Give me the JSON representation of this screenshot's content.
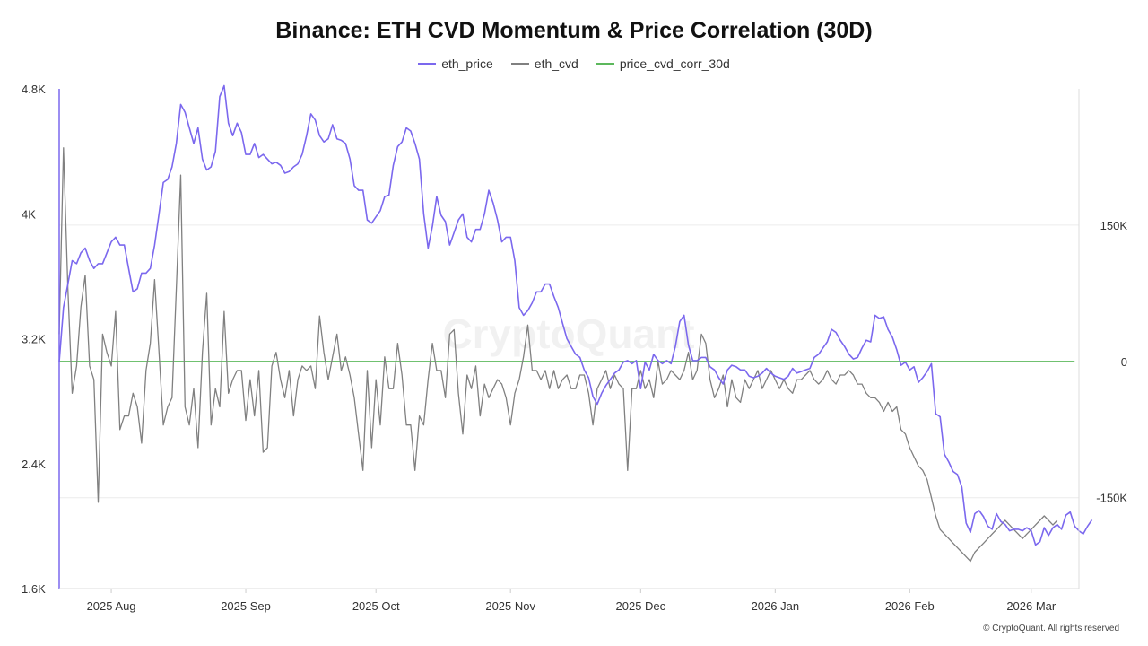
{
  "title": "Binance: ETH CVD Momentum & Price Correlation (30D)",
  "watermark": "CryptoQuant",
  "footer": "© CryptoQuant. All rights reserved",
  "colors": {
    "eth_price": "#7b68ee",
    "eth_cvd": "#808080",
    "corr": "#5cb85c",
    "grid": "#ececec"
  },
  "chart_data": {
    "type": "line",
    "legend_position": "top-center",
    "grid": true,
    "x_range": [
      "2025-07-20",
      "2026-03-12"
    ],
    "x_ticks": [
      {
        "date": "2025-08-01",
        "label": "2025 Aug"
      },
      {
        "date": "2025-09-01",
        "label": "2025 Sep"
      },
      {
        "date": "2025-10-01",
        "label": "2025 Oct"
      },
      {
        "date": "2025-11-01",
        "label": "2025 Nov"
      },
      {
        "date": "2025-12-01",
        "label": "2025 Dec"
      },
      {
        "date": "2026-01-01",
        "label": "2026 Jan"
      },
      {
        "date": "2026-02-01",
        "label": "2026 Feb"
      },
      {
        "date": "2026-03-01",
        "label": "2026 Mar"
      }
    ],
    "y_left": {
      "range": [
        1600,
        4800
      ],
      "ticks": [
        {
          "v": 1600,
          "label": "1.6K"
        },
        {
          "v": 2400,
          "label": "2.4K"
        },
        {
          "v": 3200,
          "label": "3.2K"
        },
        {
          "v": 4000,
          "label": "4K"
        },
        {
          "v": 4800,
          "label": "4.8K"
        }
      ]
    },
    "y_right": {
      "range": [
        -250000,
        300000
      ],
      "ticks": [
        {
          "v": -150000,
          "label": "-150K"
        },
        {
          "v": 0,
          "label": "0"
        },
        {
          "v": 150000,
          "label": "150K"
        }
      ]
    },
    "series": [
      {
        "name": "eth_price",
        "axis": "left",
        "interval_days": 1,
        "start": "2025-07-20",
        "values": [
          3050,
          3400,
          3550,
          3700,
          3680,
          3750,
          3780,
          3700,
          3650,
          3680,
          3680,
          3750,
          3820,
          3850,
          3800,
          3800,
          3650,
          3500,
          3520,
          3620,
          3620,
          3650,
          3800,
          4000,
          4200,
          4220,
          4300,
          4450,
          4700,
          4650,
          4550,
          4450,
          4550,
          4350,
          4280,
          4300,
          4400,
          4750,
          4820,
          4580,
          4500,
          4580,
          4520,
          4380,
          4380,
          4450,
          4360,
          4380,
          4350,
          4320,
          4330,
          4310,
          4260,
          4270,
          4300,
          4320,
          4380,
          4500,
          4640,
          4600,
          4500,
          4460,
          4480,
          4570,
          4480,
          4470,
          4450,
          4350,
          4180,
          4150,
          4150,
          3960,
          3940,
          3980,
          4020,
          4110,
          4120,
          4310,
          4430,
          4460,
          4550,
          4530,
          4450,
          4350,
          4000,
          3780,
          3920,
          4110,
          3990,
          3950,
          3800,
          3880,
          3960,
          4000,
          3850,
          3820,
          3900,
          3900,
          4000,
          4150,
          4070,
          3960,
          3820,
          3850,
          3850,
          3700,
          3400,
          3350,
          3380,
          3430,
          3500,
          3500,
          3550,
          3550,
          3470,
          3400,
          3300,
          3200,
          3150,
          3100,
          3080,
          3000,
          2950,
          2830,
          2780,
          2850,
          2900,
          2940,
          2980,
          3000,
          3050,
          3060,
          3040,
          3060,
          2880,
          3050,
          3000,
          3100,
          3060,
          3040,
          3060,
          3040,
          3150,
          3310,
          3350,
          3160,
          3060,
          3060,
          3080,
          3080,
          3020,
          3000,
          2950,
          2910,
          3000,
          3030,
          3020,
          3000,
          3000,
          2960,
          2950,
          2960,
          2980,
          3010,
          2980,
          2960,
          2950,
          2940,
          2960,
          3010,
          2980,
          2990,
          3000,
          3010,
          3080,
          3100,
          3140,
          3180,
          3260,
          3240,
          3190,
          3150,
          3100,
          3070,
          3080,
          3140,
          3190,
          3180,
          3350,
          3330,
          3340,
          3260,
          3210,
          3130,
          3030,
          3050,
          3000,
          3020,
          2920,
          2950,
          2990,
          3040,
          2720,
          2700,
          2460,
          2410,
          2350,
          2330,
          2250,
          2020,
          1960,
          2080,
          2100,
          2060,
          2000,
          1980,
          2080,
          2030,
          2010,
          1970,
          1980,
          1980,
          1970,
          1990,
          1970,
          1880,
          1900,
          1990,
          1940,
          1990,
          2010,
          1980,
          2070,
          2090,
          2000,
          1970,
          1950,
          2000,
          2040
        ]
      },
      {
        "name": "eth_cvd",
        "axis": "right",
        "interval_days": 1,
        "start": "2025-07-20",
        "values": [
          30000,
          235000,
          80000,
          -35000,
          -5000,
          60000,
          95000,
          -5000,
          -20000,
          -155000,
          30000,
          10000,
          -5000,
          55000,
          -75000,
          -60000,
          -60000,
          -35000,
          -50000,
          -90000,
          -10000,
          20000,
          90000,
          10000,
          -70000,
          -50000,
          -40000,
          80000,
          205000,
          -50000,
          -70000,
          -30000,
          -95000,
          10000,
          75000,
          -70000,
          -30000,
          -50000,
          55000,
          -35000,
          -20000,
          -10000,
          -10000,
          -65000,
          -20000,
          -60000,
          -10000,
          -100000,
          -95000,
          -5000,
          10000,
          -20000,
          -40000,
          -10000,
          -60000,
          -20000,
          -5000,
          -10000,
          -5000,
          -30000,
          50000,
          10000,
          -20000,
          5000,
          30000,
          -10000,
          5000,
          -15000,
          -40000,
          -80000,
          -120000,
          -10000,
          -95000,
          -20000,
          -70000,
          5000,
          -30000,
          -30000,
          20000,
          -15000,
          -70000,
          -70000,
          -120000,
          -60000,
          -70000,
          -20000,
          20000,
          -10000,
          -10000,
          -40000,
          30000,
          35000,
          -35000,
          -80000,
          -15000,
          -30000,
          -5000,
          -60000,
          -25000,
          -40000,
          -30000,
          -20000,
          -25000,
          -40000,
          -70000,
          -35000,
          -20000,
          5000,
          40000,
          -10000,
          -10000,
          -20000,
          -10000,
          -30000,
          -10000,
          -30000,
          -20000,
          -15000,
          -30000,
          -30000,
          -15000,
          -15000,
          -35000,
          -70000,
          -30000,
          -20000,
          -10000,
          -30000,
          -15000,
          -25000,
          -30000,
          -120000,
          -30000,
          -30000,
          -10000,
          -30000,
          -20000,
          -40000,
          0,
          -25000,
          -20000,
          -10000,
          -15000,
          -20000,
          -10000,
          10000,
          -20000,
          -10000,
          30000,
          20000,
          -20000,
          -40000,
          -30000,
          -15000,
          -50000,
          -20000,
          -40000,
          -45000,
          -20000,
          -30000,
          -20000,
          -10000,
          -30000,
          -20000,
          -10000,
          -20000,
          -30000,
          -20000,
          -30000,
          -35000,
          -20000,
          -20000,
          -15000,
          -10000,
          -20000,
          -25000,
          -20000,
          -10000,
          -20000,
          -25000,
          -15000,
          -15000,
          -10000,
          -15000,
          -25000,
          -25000,
          -35000,
          -40000,
          -40000,
          -45000,
          -55000,
          -45000,
          -55000,
          -50000,
          -75000,
          -80000,
          -95000,
          -105000,
          -115000,
          -120000,
          -130000,
          -150000,
          -170000,
          -185000,
          -190000,
          -195000,
          -200000,
          -205000,
          -210000,
          -215000,
          -220000,
          -210000,
          -205000,
          -200000,
          -195000,
          -190000,
          -185000,
          -180000,
          -175000,
          -180000,
          -185000,
          -190000,
          -195000,
          -190000,
          -185000,
          -180000,
          -175000,
          -170000,
          -175000,
          -180000,
          -175000
        ]
      },
      {
        "name": "price_cvd_corr_30d",
        "axis": "right",
        "interval_days": 1,
        "start": "2025-07-20",
        "values": [
          0,
          0,
          0,
          0,
          0,
          0,
          0,
          0,
          0,
          0,
          0,
          0,
          0,
          0,
          0,
          0,
          0,
          0,
          0,
          0,
          0,
          0,
          0,
          0,
          0,
          0,
          0,
          0,
          0,
          0,
          0,
          0,
          0,
          0,
          0,
          0,
          0,
          0,
          0,
          0,
          0,
          0,
          0,
          0,
          0,
          0,
          0,
          0,
          0,
          0,
          0,
          0,
          0,
          0,
          0,
          0,
          0,
          0,
          0,
          0,
          0,
          0,
          0,
          0,
          0,
          0,
          0,
          0,
          0,
          0,
          0,
          0,
          0,
          0,
          0,
          0,
          0,
          0,
          0,
          0,
          0,
          0,
          0,
          0,
          0,
          0,
          0,
          0,
          0,
          0,
          0,
          0,
          0,
          0,
          0,
          0,
          0,
          0,
          0,
          0,
          0,
          0,
          0,
          0,
          0,
          0,
          0,
          0,
          0,
          0,
          0,
          0,
          0,
          0,
          0,
          0,
          0,
          0,
          0,
          0,
          0,
          0,
          0,
          0,
          0,
          0,
          0,
          0,
          0,
          0,
          0,
          0,
          0,
          0,
          0,
          0,
          0,
          0,
          0,
          0,
          0,
          0,
          0,
          0,
          0,
          0,
          0,
          0,
          0,
          0,
          0,
          0,
          0,
          0,
          0,
          0,
          0,
          0,
          0,
          0,
          0,
          0,
          0,
          0,
          0,
          0,
          0,
          0,
          0,
          0,
          0,
          0,
          0,
          0,
          0,
          0,
          0,
          0,
          0,
          0,
          0,
          0,
          0,
          0,
          0,
          0,
          0,
          0,
          0,
          0,
          0,
          0,
          0,
          0,
          0,
          0,
          0,
          0,
          0,
          0,
          0,
          0,
          0,
          0,
          0,
          0,
          0,
          0,
          0,
          0,
          0,
          0,
          0,
          0,
          0,
          0,
          0,
          0,
          0,
          0,
          0,
          0,
          0,
          0,
          0,
          0,
          0,
          0,
          0,
          0,
          0,
          0,
          0,
          0,
          0
        ]
      }
    ]
  }
}
